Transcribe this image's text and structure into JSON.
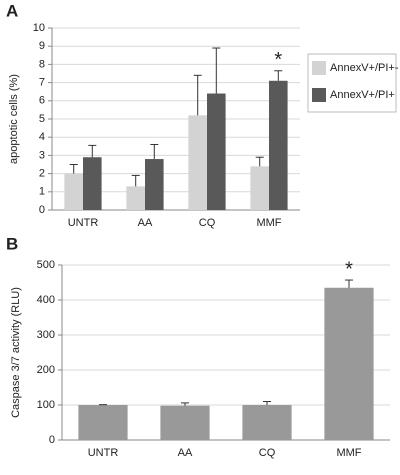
{
  "chart_data": [
    {
      "type": "bar",
      "panel_label": "A",
      "y_label": "apoptotic cells (%)",
      "categories": [
        "UNTR",
        "AA",
        "CQ",
        "MMF"
      ],
      "series": [
        {
          "name": "AnnexV+/PI+-",
          "color": "#d3d3d3",
          "values": [
            2.0,
            1.3,
            5.2,
            2.4
          ],
          "errors": [
            0.5,
            0.6,
            2.2,
            0.5
          ]
        },
        {
          "name": "AnnexV+/PI+",
          "color": "#595959",
          "values": [
            2.9,
            2.8,
            6.4,
            7.1
          ],
          "errors": [
            0.65,
            0.8,
            2.5,
            0.55
          ]
        }
      ],
      "ylim": [
        0,
        10
      ],
      "yticks": [
        0,
        1,
        2,
        3,
        4,
        5,
        6,
        7,
        8,
        9,
        10
      ],
      "grid": true,
      "legend": "right",
      "annotations": [
        "*"
      ]
    },
    {
      "type": "bar",
      "panel_label": "B",
      "y_label": "Caspase 3/7 activity (RLU)",
      "categories": [
        "UNTR",
        "AA",
        "CQ",
        "MMF"
      ],
      "values": [
        100,
        98,
        100,
        435
      ],
      "errors": [
        1,
        8,
        10,
        22
      ],
      "color": "#999999",
      "ylim": [
        0,
        500
      ],
      "yticks": [
        0,
        100,
        200,
        300,
        400,
        500
      ],
      "grid": true,
      "annotations": [
        "*"
      ]
    }
  ]
}
